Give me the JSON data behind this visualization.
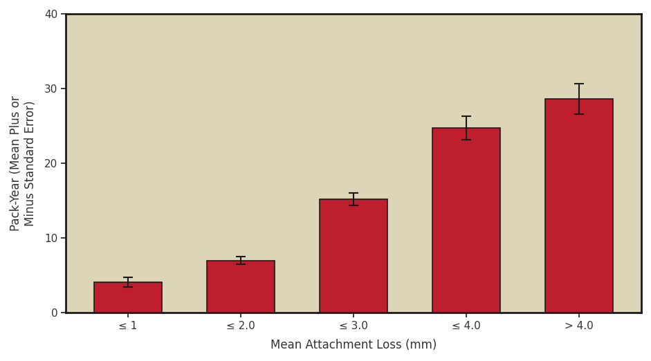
{
  "categories": [
    "≤ 1",
    "≤ 2.0",
    "≤ 3.0",
    "≤ 4.0",
    "> 4.0"
  ],
  "values": [
    4.1,
    7.0,
    15.2,
    24.7,
    28.6
  ],
  "errors": [
    0.65,
    0.5,
    0.85,
    1.55,
    2.0
  ],
  "bar_color": "#be1e2d",
  "bar_edge_color": "#1a1a1a",
  "plot_bg_color": "#ddd5b8",
  "outer_bg_color": "#ffffff",
  "ylabel": "Pack-Year (Mean Plus or\nMinus Standard Error)",
  "xlabel": "Mean Attachment Loss (mm)",
  "ylim": [
    0,
    40
  ],
  "yticks": [
    0,
    10,
    20,
    30,
    40
  ],
  "bar_width": 0.6,
  "label_fontsize": 12,
  "tick_fontsize": 11,
  "error_capsize": 5,
  "error_linewidth": 1.5,
  "error_color": "#1a1a1a",
  "spine_color": "#1a1a1a",
  "spine_linewidth": 2.0
}
